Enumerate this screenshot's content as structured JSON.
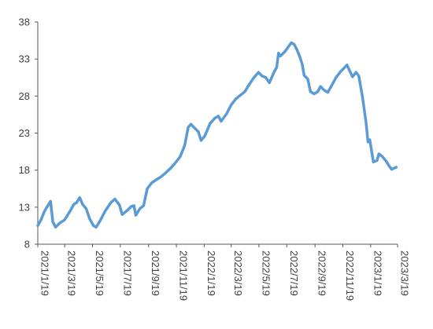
{
  "chart_data": {
    "type": "line",
    "title": "",
    "xlabel": "",
    "ylabel": "",
    "grid": false,
    "legend": "none",
    "ylim": [
      8,
      38
    ],
    "y_ticks": [
      8,
      13,
      18,
      23,
      28,
      33,
      38
    ],
    "x_ticks": [
      "2021/1/19",
      "2021/3/19",
      "2021/5/19",
      "2021/7/19",
      "2021/9/19",
      "2021/11/19",
      "2022/1/19",
      "2022/3/19",
      "2022/5/19",
      "2022/7/19",
      "2022/9/19",
      "2022/11/19",
      "2023/1/19",
      "2023/3/19"
    ],
    "series": [
      {
        "color": "#5b9bd5",
        "points": [
          [
            "2021-01-19",
            10.5
          ],
          [
            "2021-01-26",
            11.3
          ],
          [
            "2021-02-03",
            12.5
          ],
          [
            "2021-02-10",
            13.2
          ],
          [
            "2021-02-16",
            13.8
          ],
          [
            "2021-02-21",
            11.0
          ],
          [
            "2021-02-27",
            10.3
          ],
          [
            "2021-03-07",
            10.8
          ],
          [
            "2021-03-19",
            11.3
          ],
          [
            "2021-04-01",
            12.6
          ],
          [
            "2021-04-08",
            13.4
          ],
          [
            "2021-04-14",
            13.6
          ],
          [
            "2021-04-21",
            14.3
          ],
          [
            "2021-04-27",
            13.4
          ],
          [
            "2021-05-05",
            12.8
          ],
          [
            "2021-05-13",
            11.4
          ],
          [
            "2021-05-21",
            10.5
          ],
          [
            "2021-05-27",
            10.3
          ],
          [
            "2021-06-04",
            11.1
          ],
          [
            "2021-06-16",
            12.5
          ],
          [
            "2021-06-28",
            13.6
          ],
          [
            "2021-07-07",
            14.1
          ],
          [
            "2021-07-17",
            13.3
          ],
          [
            "2021-07-23",
            12.0
          ],
          [
            "2021-08-04",
            12.6
          ],
          [
            "2021-08-12",
            13.1
          ],
          [
            "2021-08-18",
            13.2
          ],
          [
            "2021-08-22",
            11.9
          ],
          [
            "2021-08-31",
            12.8
          ],
          [
            "2021-09-08",
            13.2
          ],
          [
            "2021-09-16",
            15.5
          ],
          [
            "2021-09-26",
            16.3
          ],
          [
            "2021-10-06",
            16.7
          ],
          [
            "2021-10-16",
            17.1
          ],
          [
            "2021-10-26",
            17.6
          ],
          [
            "2021-11-07",
            18.3
          ],
          [
            "2021-11-17",
            19.0
          ],
          [
            "2021-11-27",
            19.8
          ],
          [
            "2021-12-07",
            21.3
          ],
          [
            "2021-12-15",
            23.8
          ],
          [
            "2021-12-21",
            24.2
          ],
          [
            "2021-12-27",
            23.8
          ],
          [
            "2022-01-06",
            23.2
          ],
          [
            "2022-01-12",
            22.0
          ],
          [
            "2022-01-20",
            22.6
          ],
          [
            "2022-02-01",
            24.3
          ],
          [
            "2022-02-11",
            25.0
          ],
          [
            "2022-02-19",
            25.3
          ],
          [
            "2022-02-25",
            24.6
          ],
          [
            "2022-03-09",
            25.6
          ],
          [
            "2022-03-19",
            26.8
          ],
          [
            "2022-03-29",
            27.6
          ],
          [
            "2022-04-08",
            28.1
          ],
          [
            "2022-04-18",
            28.6
          ],
          [
            "2022-04-28",
            29.6
          ],
          [
            "2022-05-08",
            30.5
          ],
          [
            "2022-05-18",
            31.2
          ],
          [
            "2022-05-26",
            30.7
          ],
          [
            "2022-06-03",
            30.5
          ],
          [
            "2022-06-11",
            29.8
          ],
          [
            "2022-06-21",
            31.2
          ],
          [
            "2022-06-27",
            31.9
          ],
          [
            "2022-07-01",
            33.8
          ],
          [
            "2022-07-05",
            33.4
          ],
          [
            "2022-07-15",
            34.0
          ],
          [
            "2022-07-23",
            34.7
          ],
          [
            "2022-07-29",
            35.2
          ],
          [
            "2022-08-04",
            35.0
          ],
          [
            "2022-08-10",
            34.3
          ],
          [
            "2022-08-16",
            33.4
          ],
          [
            "2022-08-22",
            32.3
          ],
          [
            "2022-08-26",
            30.8
          ],
          [
            "2022-09-03",
            30.3
          ],
          [
            "2022-09-09",
            28.6
          ],
          [
            "2022-09-17",
            28.3
          ],
          [
            "2022-09-25",
            28.6
          ],
          [
            "2022-10-01",
            29.3
          ],
          [
            "2022-10-09",
            28.8
          ],
          [
            "2022-10-17",
            28.5
          ],
          [
            "2022-10-27",
            29.6
          ],
          [
            "2022-11-04",
            30.5
          ],
          [
            "2022-11-14",
            31.3
          ],
          [
            "2022-11-22",
            31.8
          ],
          [
            "2022-11-28",
            32.2
          ],
          [
            "2022-12-04",
            31.4
          ],
          [
            "2022-12-10",
            30.6
          ],
          [
            "2022-12-18",
            31.2
          ],
          [
            "2022-12-24",
            30.7
          ],
          [
            "2023-01-01",
            27.9
          ],
          [
            "2023-01-09",
            24.4
          ],
          [
            "2023-01-13",
            21.8
          ],
          [
            "2023-01-17",
            22.1
          ],
          [
            "2023-01-25",
            19.1
          ],
          [
            "2023-02-02",
            19.3
          ],
          [
            "2023-02-06",
            20.2
          ],
          [
            "2023-02-14",
            19.8
          ],
          [
            "2023-02-22",
            19.2
          ],
          [
            "2023-02-28",
            18.6
          ],
          [
            "2023-03-06",
            18.1
          ],
          [
            "2023-03-16",
            18.4
          ]
        ]
      }
    ]
  }
}
